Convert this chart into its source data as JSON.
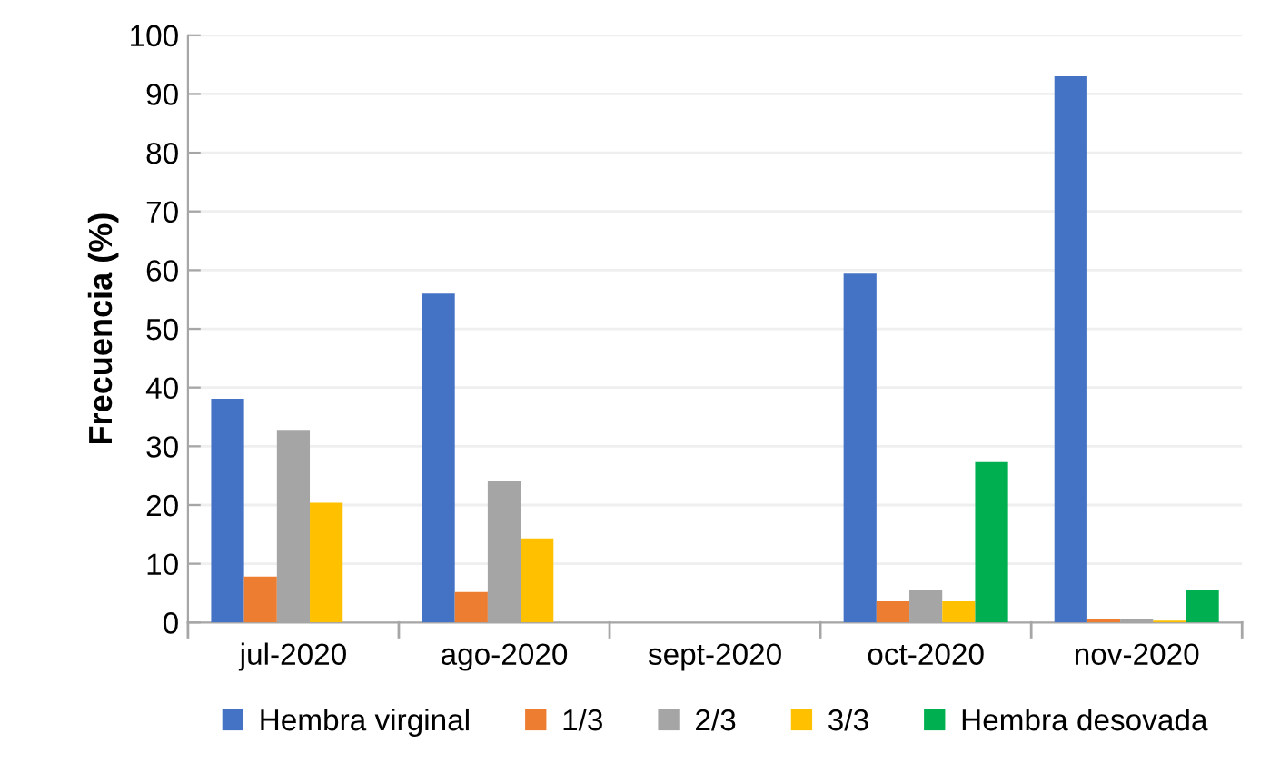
{
  "chart_data": {
    "type": "bar",
    "ylabel": "Frecuencia (%)",
    "categories": [
      "jul-2020",
      "ago-2020",
      "sept-2020",
      "oct-2020",
      "nov-2020"
    ],
    "series": [
      {
        "name": "Hembra virginal",
        "color": "#4472c4",
        "values": [
          38.1,
          56.0,
          null,
          59.4,
          93.0
        ]
      },
      {
        "name": "1/3",
        "color": "#ed7d31",
        "values": [
          7.8,
          5.2,
          null,
          3.6,
          0.6
        ]
      },
      {
        "name": "2/3",
        "color": "#a5a5a5",
        "values": [
          32.8,
          24.1,
          null,
          5.6,
          0.6
        ]
      },
      {
        "name": "3/3",
        "color": "#ffc000",
        "values": [
          20.4,
          14.3,
          null,
          3.6,
          0.3
        ]
      },
      {
        "name": "Hembra desovada",
        "color": "#00b050",
        "values": [
          0,
          0,
          null,
          27.3,
          5.6
        ]
      }
    ],
    "ylim": [
      0,
      100
    ],
    "yticks": [
      0,
      10,
      20,
      30,
      40,
      50,
      60,
      70,
      80,
      90,
      100
    ],
    "grid": "y",
    "legend": "bottom"
  }
}
